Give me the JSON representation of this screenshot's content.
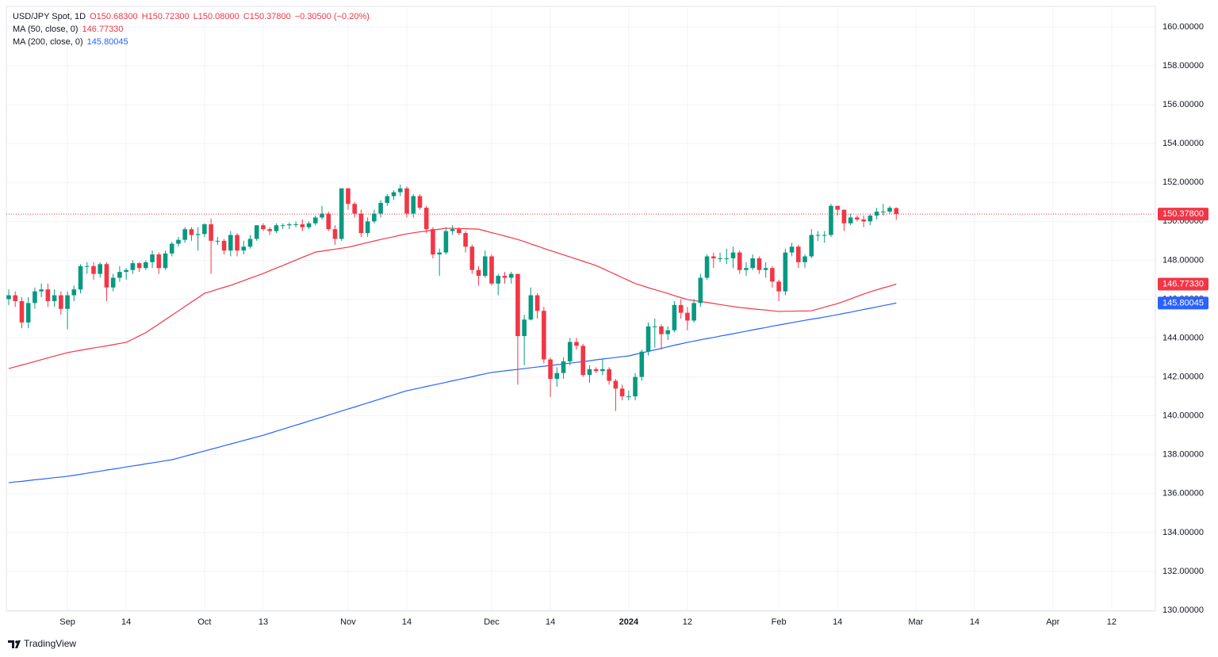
{
  "chart_data": {
    "type": "candlestick",
    "legend": {
      "title": "USD/JPY Spot, 1D",
      "ohlc": [
        "O150.68300",
        "H150.72300",
        "L150.08000",
        "C150.37800"
      ],
      "change": "−0.30500 (−0.20%)"
    },
    "categories": [
      null,
      null,
      null,
      null,
      null,
      null,
      null,
      null,
      null,
      "Sep",
      null,
      null,
      null,
      null,
      null,
      null,
      null,
      null,
      "14",
      null,
      null,
      null,
      null,
      null,
      null,
      null,
      null,
      null,
      null,
      null,
      "Oct",
      null,
      null,
      null,
      null,
      null,
      null,
      null,
      null,
      "13",
      null,
      null,
      null,
      null,
      null,
      null,
      null,
      null,
      null,
      null,
      null,
      null,
      "Nov",
      null,
      null,
      null,
      null,
      null,
      null,
      null,
      null,
      "14",
      null,
      null,
      null,
      null,
      null,
      null,
      null,
      null,
      null,
      null,
      null,
      null,
      "Dec",
      null,
      null,
      null,
      null,
      null,
      null,
      null,
      null,
      "14",
      null,
      null,
      null,
      null,
      null,
      null,
      null,
      null,
      null,
      null,
      null,
      "2024",
      null,
      null,
      null,
      null,
      null,
      null,
      null,
      null,
      "12",
      null,
      null,
      null,
      null,
      null,
      null,
      null,
      null,
      null,
      null,
      null,
      null,
      null,
      "Feb",
      null,
      null,
      null,
      null,
      null,
      null,
      null,
      null,
      "14",
      null,
      null,
      null,
      null,
      null,
      null,
      null,
      null,
      null,
      null,
      null,
      "Mar",
      null,
      null,
      null,
      null,
      null,
      null,
      null,
      null,
      "14",
      null,
      null,
      null,
      null,
      null,
      null,
      null,
      null,
      null,
      null,
      null,
      "Apr",
      null,
      null,
      null,
      null,
      null,
      null,
      null,
      null,
      "12",
      null,
      null,
      null,
      null,
      null
    ],
    "bold_categories": [
      "2024"
    ],
    "open": [
      146.0,
      146.2,
      145.9,
      144.8,
      145.8,
      146.4,
      146.5,
      145.9,
      146.2,
      145.5,
      146.2,
      146.5,
      147.7,
      147.7,
      147.3,
      147.8,
      146.6,
      147.1,
      147.4,
      147.5,
      147.85,
      147.6,
      147.9,
      148.3,
      147.6,
      148.35,
      148.85,
      149.05,
      149.6,
      149.3,
      149.35,
      149.85,
      149.0,
      149.0,
      148.5,
      149.3,
      148.5,
      148.7,
      149.1,
      149.8,
      149.6,
      149.5,
      149.8,
      149.8,
      149.85,
      149.85,
      149.7,
      149.9,
      150.2,
      150.4,
      149.6,
      149.1,
      151.7,
      150.9,
      150.4,
      149.4,
      150.0,
      150.4,
      150.95,
      151.3,
      151.5,
      151.7,
      150.4,
      151.3,
      150.7,
      149.6,
      148.3,
      148.4,
      149.5,
      149.6,
      149.4,
      148.7,
      147.5,
      147.2,
      148.2,
      146.8,
      147.2,
      147.1,
      147.3,
      144.1,
      144.95,
      146.2,
      145.4,
      142.9,
      141.9,
      142.2,
      142.8,
      143.8,
      143.6,
      142.1,
      142.4,
      142.3,
      142.4,
      141.8,
      141.4,
      141.0,
      141.0,
      142.0,
      143.3,
      144.6,
      144.6,
      144.2,
      144.4,
      145.7,
      145.3,
      144.9,
      145.8,
      147.1,
      148.2,
      148.1,
      148.1,
      148.1,
      148.4,
      147.5,
      147.6,
      148.1,
      147.5,
      147.6,
      146.9,
      146.4,
      148.4,
      148.7,
      147.9,
      148.2,
      149.3,
      149.3,
      149.3,
      150.8,
      150.6,
      149.9,
      150.2,
      150.1,
      150.0,
      150.3,
      150.5,
      150.5,
      150.683,
      null,
      null,
      null,
      null,
      null,
      null,
      null,
      null,
      null,
      null,
      null,
      null,
      null,
      null,
      null,
      null,
      null,
      null,
      null,
      null,
      null,
      null,
      null,
      null,
      null,
      null,
      null,
      null,
      null,
      null,
      null,
      null,
      null,
      null,
      null,
      null,
      null,
      null
    ],
    "high": [
      146.5,
      146.4,
      146.1,
      146.1,
      146.6,
      146.8,
      146.8,
      146.5,
      146.4,
      146.4,
      146.7,
      147.8,
      147.9,
      147.9,
      147.9,
      147.9,
      147.3,
      147.7,
      147.6,
      148.0,
      147.9,
      148.0,
      148.5,
      148.4,
      148.5,
      148.95,
      149.2,
      149.7,
      149.7,
      149.7,
      149.9,
      150.15,
      149.2,
      149.1,
      149.5,
      149.4,
      149.0,
      149.3,
      149.8,
      149.9,
      149.7,
      149.9,
      149.9,
      149.95,
      150.0,
      150.1,
      150.0,
      150.3,
      150.8,
      150.5,
      149.8,
      151.7,
      151.7,
      151.0,
      150.6,
      150.2,
      150.6,
      151.1,
      151.4,
      151.6,
      151.9,
      151.8,
      151.4,
      151.4,
      150.8,
      149.7,
      148.6,
      149.7,
      149.8,
      149.7,
      149.5,
      148.8,
      147.7,
      148.5,
      148.3,
      147.3,
      147.4,
      147.4,
      147.3,
      145.2,
      146.6,
      146.3,
      145.6,
      143.0,
      142.5,
      143.0,
      144.0,
      144.0,
      143.7,
      142.6,
      142.5,
      142.9,
      142.5,
      141.9,
      141.6,
      141.3,
      142.2,
      143.4,
      144.8,
      145.0,
      144.7,
      144.6,
      145.9,
      146.0,
      145.6,
      146.0,
      147.3,
      148.3,
      148.4,
      148.4,
      148.6,
      148.7,
      148.5,
      147.9,
      148.3,
      148.2,
      147.9,
      147.7,
      147.0,
      148.6,
      148.9,
      148.8,
      148.3,
      149.6,
      149.5,
      149.5,
      150.9,
      150.8,
      150.6,
      150.4,
      150.3,
      150.3,
      150.4,
      150.7,
      150.9,
      150.8,
      150.723,
      null,
      null,
      null,
      null,
      null,
      null,
      null,
      null,
      null,
      null,
      null,
      null,
      null,
      null,
      null,
      null,
      null,
      null,
      null,
      null,
      null,
      null,
      null,
      null,
      null,
      null,
      null,
      null,
      null,
      null,
      null,
      null,
      null,
      null,
      null,
      null,
      null,
      null
    ],
    "low": [
      145.7,
      145.6,
      144.5,
      144.5,
      145.5,
      146.1,
      145.6,
      145.6,
      145.2,
      144.45,
      145.9,
      146.3,
      147.3,
      147.0,
      147.1,
      145.9,
      146.4,
      146.9,
      147.0,
      147.3,
      147.4,
      147.5,
      147.6,
      147.3,
      147.5,
      148.2,
      148.7,
      148.9,
      149.0,
      148.5,
      149.2,
      147.3,
      148.8,
      148.3,
      148.2,
      148.2,
      148.3,
      148.6,
      149.0,
      149.5,
      149.3,
      149.4,
      149.6,
      149.6,
      149.7,
      149.5,
      149.6,
      149.8,
      150.1,
      149.5,
      148.8,
      149.0,
      150.6,
      150.2,
      149.2,
      149.2,
      149.9,
      150.2,
      150.8,
      151.1,
      151.3,
      150.2,
      150.2,
      150.6,
      149.4,
      148.1,
      147.2,
      148.3,
      149.3,
      149.3,
      148.4,
      147.3,
      146.7,
      147.1,
      146.7,
      146.2,
      146.8,
      146.8,
      141.6,
      142.6,
      144.9,
      145.0,
      142.7,
      140.97,
      141.5,
      141.9,
      142.6,
      143.4,
      142.0,
      141.7,
      142.2,
      142.1,
      141.6,
      140.25,
      140.8,
      140.8,
      140.8,
      141.8,
      143.1,
      143.5,
      143.4,
      143.9,
      144.3,
      145.0,
      144.4,
      144.8,
      145.6,
      147.0,
      147.6,
      147.9,
      147.8,
      147.6,
      147.3,
      147.2,
      147.5,
      147.3,
      147.1,
      146.6,
      145.9,
      146.2,
      148.2,
      147.6,
      147.6,
      148.1,
      149.0,
      148.9,
      149.2,
      150.3,
      149.5,
      149.8,
      150.0,
      149.7,
      149.8,
      150.1,
      150.3,
      150.4,
      150.08,
      null,
      null,
      null,
      null,
      null,
      null,
      null,
      null,
      null,
      null,
      null,
      null,
      null,
      null,
      null,
      null,
      null,
      null,
      null,
      null,
      null,
      null,
      null,
      null,
      null,
      null,
      null,
      null,
      null,
      null,
      null,
      null,
      null,
      null,
      null,
      null,
      null,
      null
    ],
    "close": [
      146.2,
      145.9,
      144.8,
      145.8,
      146.4,
      146.5,
      145.9,
      146.2,
      145.5,
      146.2,
      146.5,
      147.7,
      147.7,
      147.3,
      147.8,
      146.6,
      147.1,
      147.4,
      147.5,
      147.85,
      147.6,
      147.9,
      148.3,
      147.6,
      148.35,
      148.85,
      149.05,
      149.6,
      149.3,
      149.35,
      149.85,
      149.0,
      149.0,
      148.5,
      149.3,
      148.5,
      148.7,
      149.1,
      149.8,
      149.6,
      149.5,
      149.8,
      149.8,
      149.85,
      149.85,
      149.7,
      149.9,
      150.2,
      150.4,
      149.6,
      149.1,
      151.7,
      150.9,
      150.4,
      149.4,
      150.0,
      150.4,
      150.95,
      151.3,
      151.5,
      151.7,
      150.4,
      151.3,
      150.7,
      149.6,
      148.3,
      148.4,
      149.5,
      149.6,
      149.4,
      148.7,
      147.5,
      147.2,
      148.2,
      146.8,
      147.2,
      147.1,
      147.3,
      144.1,
      144.95,
      146.2,
      145.4,
      142.9,
      141.9,
      142.2,
      142.8,
      143.8,
      143.6,
      142.1,
      142.4,
      142.3,
      142.4,
      141.8,
      141.4,
      141.0,
      141.0,
      142.0,
      143.3,
      144.6,
      144.6,
      144.2,
      144.4,
      145.7,
      145.3,
      144.9,
      145.8,
      147.1,
      148.2,
      148.1,
      148.1,
      148.1,
      148.4,
      147.5,
      147.6,
      148.1,
      147.5,
      147.6,
      146.9,
      146.4,
      148.4,
      148.7,
      147.9,
      148.2,
      149.3,
      149.3,
      149.3,
      150.8,
      150.6,
      149.9,
      150.2,
      150.1,
      150.0,
      150.3,
      150.5,
      150.5,
      150.7,
      150.378,
      null,
      null,
      null,
      null,
      null,
      null,
      null,
      null,
      null,
      null,
      null,
      null,
      null,
      null,
      null,
      null,
      null,
      null,
      null,
      null,
      null,
      null,
      null,
      null,
      null,
      null,
      null,
      null,
      null,
      null,
      null,
      null,
      null,
      null,
      null,
      null,
      null,
      null
    ],
    "last_label": "150.37800",
    "up_color": "#089981",
    "down_color": "#f23645",
    "series": [
      {
        "name": "MA (50, close, 0)",
        "color": "#f23645",
        "value_label": "146.77330",
        "values": [
          142.43,
          142.52,
          142.61,
          142.7,
          142.79,
          142.89,
          142.98,
          143.07,
          143.16,
          143.25,
          143.31,
          143.37,
          143.43,
          143.49,
          143.54,
          143.6,
          143.66,
          143.72,
          143.78,
          143.94,
          144.11,
          144.27,
          144.5,
          144.72,
          144.95,
          145.17,
          145.4,
          145.62,
          145.85,
          146.07,
          146.3,
          146.4,
          146.51,
          146.61,
          146.71,
          146.83,
          146.95,
          147.08,
          147.2,
          147.32,
          147.46,
          147.6,
          147.73,
          147.87,
          148.01,
          148.15,
          148.28,
          148.42,
          148.47,
          148.52,
          148.57,
          148.62,
          148.67,
          148.75,
          148.83,
          148.91,
          148.99,
          149.07,
          149.14,
          149.21,
          149.29,
          149.36,
          149.41,
          149.46,
          149.5,
          149.55,
          149.6,
          149.65,
          149.64,
          149.63,
          149.62,
          149.61,
          149.6,
          149.51,
          149.42,
          149.34,
          149.25,
          149.16,
          149.07,
          148.96,
          148.84,
          148.73,
          148.61,
          148.5,
          148.39,
          148.28,
          148.17,
          148.06,
          147.95,
          147.84,
          147.73,
          147.58,
          147.42,
          147.27,
          147.11,
          146.96,
          146.8,
          146.7,
          146.59,
          146.49,
          146.39,
          146.29,
          146.18,
          146.08,
          145.98,
          145.93,
          145.88,
          145.83,
          145.78,
          145.72,
          145.67,
          145.62,
          145.57,
          145.54,
          145.5,
          145.47,
          145.44,
          145.4,
          145.37,
          145.38,
          145.38,
          145.39,
          145.39,
          145.4,
          145.49,
          145.59,
          145.68,
          145.77,
          145.89,
          146.01,
          146.14,
          146.26,
          146.38,
          146.48,
          146.58,
          146.67,
          146.7733,
          null,
          null,
          null,
          null,
          null,
          null,
          null,
          null,
          null,
          null,
          null,
          null,
          null,
          null,
          null,
          null,
          null,
          null,
          null,
          null,
          null,
          null,
          null,
          null,
          null,
          null,
          null,
          null,
          null,
          null,
          null,
          null,
          null,
          null,
          null,
          null,
          null,
          null
        ]
      },
      {
        "name": "MA (200, close, 0)",
        "color": "#2962ff",
        "value_label": "145.80045",
        "values": [
          136.56,
          136.6,
          136.63,
          136.67,
          136.71,
          136.74,
          136.78,
          136.82,
          136.85,
          136.89,
          136.94,
          136.99,
          137.05,
          137.1,
          137.15,
          137.21,
          137.26,
          137.31,
          137.37,
          137.42,
          137.47,
          137.53,
          137.58,
          137.63,
          137.69,
          137.74,
          137.83,
          137.92,
          138.01,
          138.1,
          138.19,
          138.28,
          138.37,
          138.46,
          138.55,
          138.64,
          138.73,
          138.82,
          138.91,
          139.0,
          139.1,
          139.21,
          139.31,
          139.42,
          139.52,
          139.62,
          139.73,
          139.83,
          139.93,
          140.04,
          140.14,
          140.25,
          140.35,
          140.45,
          140.56,
          140.66,
          140.77,
          140.87,
          140.98,
          141.08,
          141.19,
          141.29,
          141.36,
          141.43,
          141.51,
          141.58,
          141.65,
          141.72,
          141.8,
          141.87,
          141.94,
          142.01,
          142.09,
          142.16,
          142.23,
          142.27,
          142.31,
          142.35,
          142.39,
          142.43,
          142.47,
          142.51,
          142.55,
          142.59,
          142.63,
          142.67,
          142.71,
          142.75,
          142.79,
          142.83,
          142.88,
          142.92,
          142.96,
          143.0,
          143.04,
          143.08,
          143.16,
          143.24,
          143.31,
          143.39,
          143.47,
          143.55,
          143.63,
          143.7,
          143.78,
          143.84,
          143.91,
          143.97,
          144.03,
          144.1,
          144.16,
          144.22,
          144.29,
          144.35,
          144.42,
          144.48,
          144.54,
          144.61,
          144.67,
          144.73,
          144.79,
          144.85,
          144.91,
          144.97,
          145.02,
          145.08,
          145.14,
          145.2,
          145.27,
          145.33,
          145.4,
          145.47,
          145.53,
          145.6,
          145.67,
          145.73,
          145.80045,
          null,
          null,
          null,
          null,
          null,
          null,
          null,
          null,
          null,
          null,
          null,
          null,
          null,
          null,
          null,
          null,
          null,
          null,
          null,
          null,
          null,
          null,
          null,
          null,
          null,
          null,
          null,
          null,
          null,
          null,
          null,
          null,
          null,
          null,
          null,
          null,
          null,
          null
        ]
      }
    ],
    "ylim": [
      130,
      161.06
    ],
    "yticks": [
      {
        "value": 130,
        "label": "130.00000"
      },
      {
        "value": 132,
        "label": "132.00000"
      },
      {
        "value": 134,
        "label": "134.00000"
      },
      {
        "value": 136,
        "label": "136.00000"
      },
      {
        "value": 138,
        "label": "138.00000"
      },
      {
        "value": 140,
        "label": "140.00000"
      },
      {
        "value": 142,
        "label": "142.00000"
      },
      {
        "value": 144,
        "label": "144.00000"
      },
      {
        "value": 146,
        "label": "146.00000"
      },
      {
        "value": 148,
        "label": "148.00000"
      },
      {
        "value": 150,
        "label": "150.00000"
      },
      {
        "value": 152,
        "label": "152.00000"
      },
      {
        "value": 154,
        "label": "154.00000"
      },
      {
        "value": 156,
        "label": "156.00000"
      },
      {
        "value": 158,
        "label": "158.00000"
      },
      {
        "value": 160,
        "label": "160.00000"
      }
    ],
    "grid": true,
    "brand": "TradingView"
  }
}
